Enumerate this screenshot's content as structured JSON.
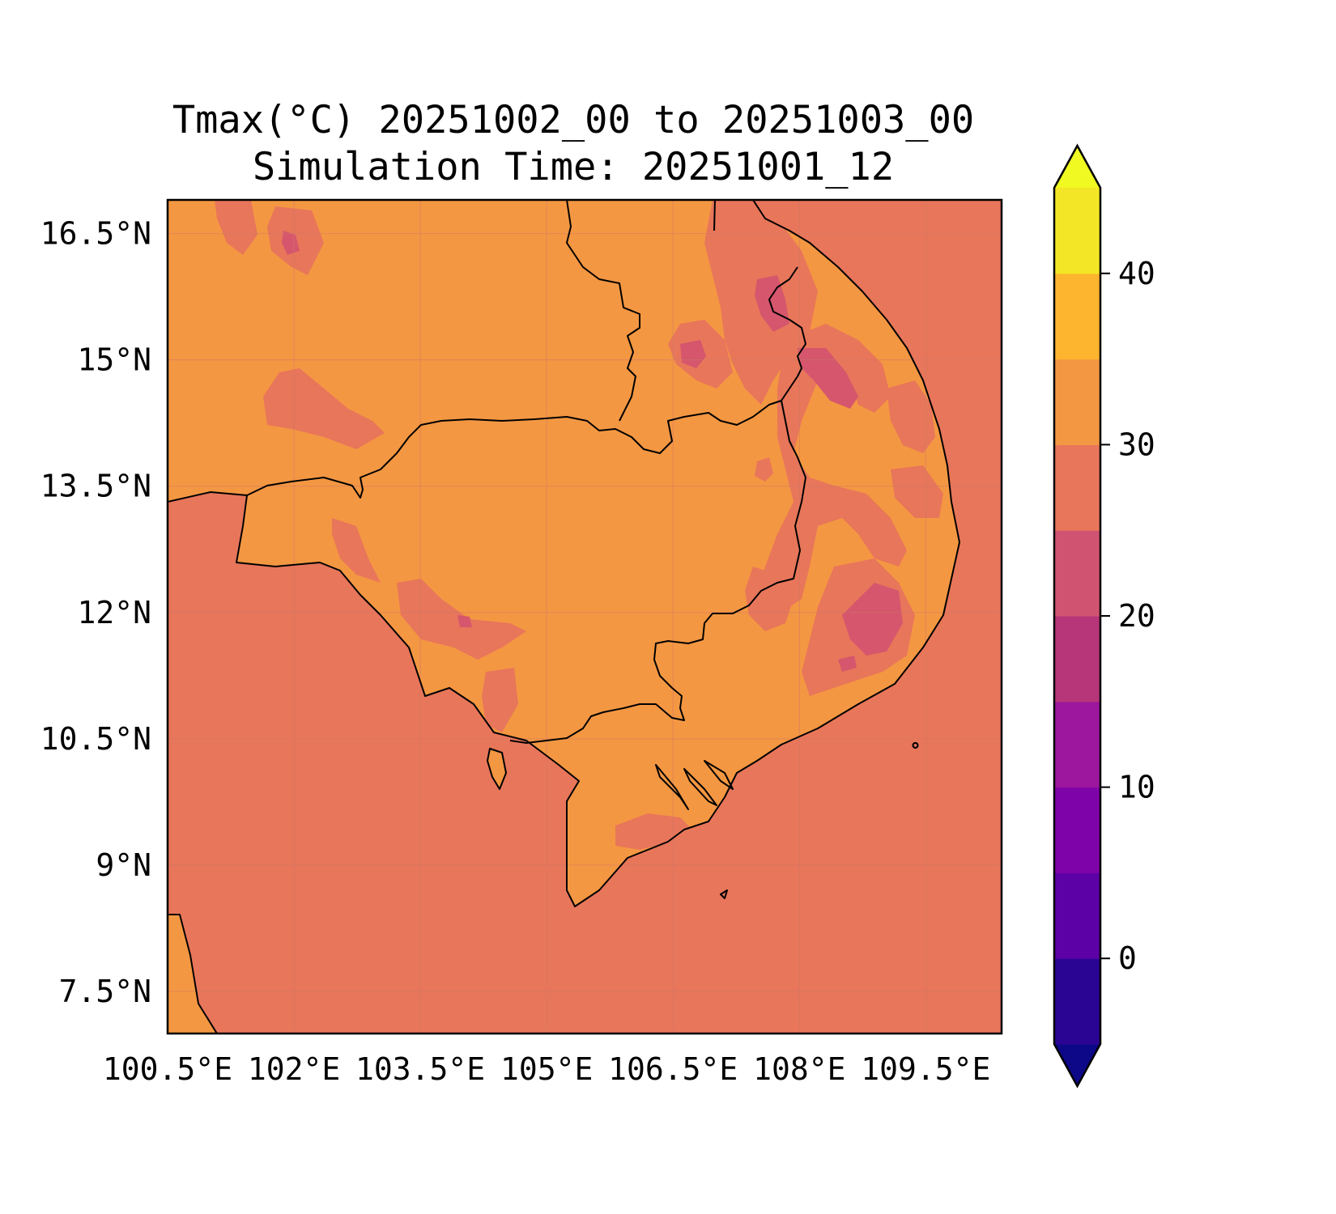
{
  "title": {
    "line1": "Tmax(°C) 20251002_00 to 20251003_00",
    "line2": "Simulation Time: 20251001_12"
  },
  "map": {
    "lon_range": [
      100.5,
      110.4
    ],
    "lat_range": [
      7.0,
      16.9
    ],
    "lon_ticks": [
      {
        "value": 100.5,
        "label": "100.5°E"
      },
      {
        "value": 102.0,
        "label": "102°E"
      },
      {
        "value": 103.5,
        "label": "103.5°E"
      },
      {
        "value": 105.0,
        "label": "105°E"
      },
      {
        "value": 106.5,
        "label": "106.5°E"
      },
      {
        "value": 108.0,
        "label": "108°E"
      },
      {
        "value": 109.5,
        "label": "109.5°E"
      }
    ],
    "lat_ticks": [
      {
        "value": 16.5,
        "label": "16.5°N"
      },
      {
        "value": 15.0,
        "label": "15°N"
      },
      {
        "value": 13.5,
        "label": "13.5°N"
      },
      {
        "value": 12.0,
        "label": "12°N"
      },
      {
        "value": 10.5,
        "label": "10.5°N"
      },
      {
        "value": 9.0,
        "label": "9°N"
      },
      {
        "value": 7.5,
        "label": "7.5°N"
      }
    ],
    "colors": {
      "sea": "#e8765a",
      "land_warm": "#f49742",
      "land_mid": "#e8765a",
      "land_cool": "#d5566d"
    }
  },
  "colorbar": {
    "min": -5,
    "max": 45,
    "extend": "both",
    "under_color": "#0d0887",
    "over_color": "#f0f921",
    "bins": [
      {
        "from": -5,
        "to": 0,
        "color": "#2a0593"
      },
      {
        "from": 0,
        "to": 5,
        "color": "#5c01a6"
      },
      {
        "from": 5,
        "to": 10,
        "color": "#7e03a8"
      },
      {
        "from": 10,
        "to": 15,
        "color": "#9c179e"
      },
      {
        "from": 15,
        "to": 20,
        "color": "#b63679"
      },
      {
        "from": 20,
        "to": 25,
        "color": "#d05372"
      },
      {
        "from": 25,
        "to": 30,
        "color": "#e8765a"
      },
      {
        "from": 30,
        "to": 35,
        "color": "#f49742"
      },
      {
        "from": 35,
        "to": 40,
        "color": "#fdb42f"
      },
      {
        "from": 40,
        "to": 45,
        "color": "#f3e626"
      }
    ],
    "ticks": [
      {
        "value": 0,
        "label": "0"
      },
      {
        "value": 10,
        "label": "10"
      },
      {
        "value": 20,
        "label": "20"
      },
      {
        "value": 30,
        "label": "30"
      },
      {
        "value": 40,
        "label": "40"
      }
    ]
  }
}
